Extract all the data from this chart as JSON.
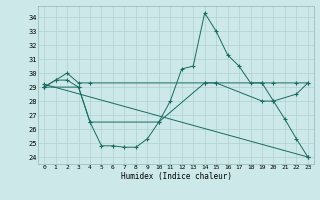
{
  "xlabel": "Humidex (Indice chaleur)",
  "bg_color": "#cce8e8",
  "grid_color": "#b0d0d0",
  "line_color": "#1a6b60",
  "ylim": [
    23.5,
    34.8
  ],
  "xlim": [
    -0.5,
    23.5
  ],
  "yticks": [
    24,
    25,
    26,
    27,
    28,
    29,
    30,
    31,
    32,
    33,
    34
  ],
  "xticks": [
    0,
    1,
    2,
    3,
    4,
    5,
    6,
    7,
    8,
    9,
    10,
    11,
    12,
    13,
    14,
    15,
    16,
    17,
    18,
    19,
    20,
    21,
    22,
    23
  ],
  "lines": [
    {
      "x": [
        0,
        1,
        2,
        3,
        4,
        5,
        6,
        7,
        8,
        9,
        10,
        11,
        12,
        13,
        14,
        15,
        16,
        17,
        18,
        19,
        20,
        21,
        22,
        23
      ],
      "y": [
        29,
        29.5,
        29.5,
        29,
        26.5,
        24.8,
        24.8,
        24.7,
        24.7,
        25.3,
        26.5,
        28.0,
        30.3,
        30.5,
        34.3,
        33.0,
        31.3,
        30.5,
        29.3,
        29.3,
        28.0,
        26.7,
        25.3,
        24.0
      ]
    },
    {
      "x": [
        0,
        1,
        2,
        3,
        4,
        14,
        15,
        19,
        20,
        22,
        23
      ],
      "y": [
        29,
        29.5,
        30.0,
        29.3,
        29.3,
        29.3,
        29.3,
        29.3,
        29.3,
        29.3,
        29.3
      ]
    },
    {
      "x": [
        0,
        3,
        4,
        10,
        14,
        15,
        19,
        20,
        22,
        23
      ],
      "y": [
        29,
        29.0,
        26.5,
        26.5,
        29.3,
        29.3,
        28.0,
        28.0,
        28.5,
        29.3
      ]
    },
    {
      "x": [
        0,
        23
      ],
      "y": [
        29.2,
        24.0
      ]
    }
  ]
}
